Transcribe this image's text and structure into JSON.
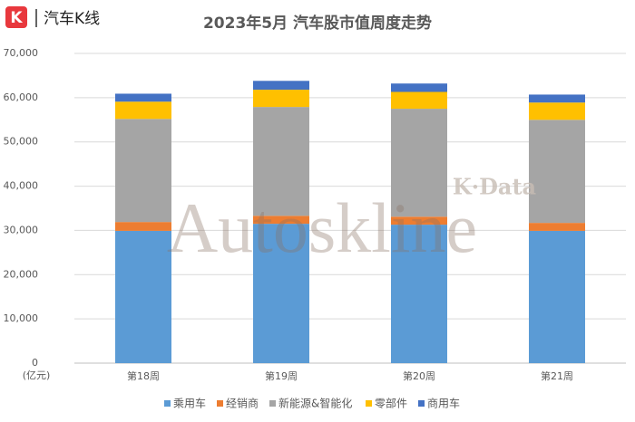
{
  "header": {
    "logo_icon": "K",
    "logo_text": "汽车K线"
  },
  "chart_data": {
    "type": "stacked_bar",
    "title": "2023年5月 汽车股市值周度走势",
    "y_unit": "(亿元)",
    "annotations": [
      "K·Data",
      "Autoskline"
    ],
    "categories": [
      "第18周",
      "第19周",
      "第20周",
      "第21周"
    ],
    "series": [
      {
        "name": "乘用车",
        "color": "#5b9bd5",
        "values": [
          29900,
          31500,
          31300,
          29900
        ]
      },
      {
        "name": "经销商",
        "color": "#ed7d31",
        "values": [
          2000,
          1800,
          1800,
          1800
        ]
      },
      {
        "name": "新能源&智能化",
        "color": "#a5a5a5",
        "values": [
          23300,
          24600,
          24400,
          23300
        ]
      },
      {
        "name": "零部件",
        "color": "#ffc000",
        "values": [
          3900,
          3900,
          3800,
          3900
        ]
      },
      {
        "name": "商用车",
        "color": "#4472c4",
        "values": [
          1800,
          2000,
          1900,
          1800
        ]
      }
    ],
    "ylim": [
      0,
      70000
    ],
    "yticks": [
      0,
      {
        "value": 10000,
        "label": "10,000"
      },
      {
        "value": 20000,
        "label": "20,000"
      },
      {
        "value": 30000,
        "label": "30,000"
      },
      {
        "value": 40000,
        "label": "40,000"
      },
      {
        "value": 50000,
        "label": "50,000"
      },
      {
        "value": 60000,
        "label": "60,000"
      },
      {
        "value": 70000,
        "label": "70,000"
      }
    ],
    "grid": true
  }
}
